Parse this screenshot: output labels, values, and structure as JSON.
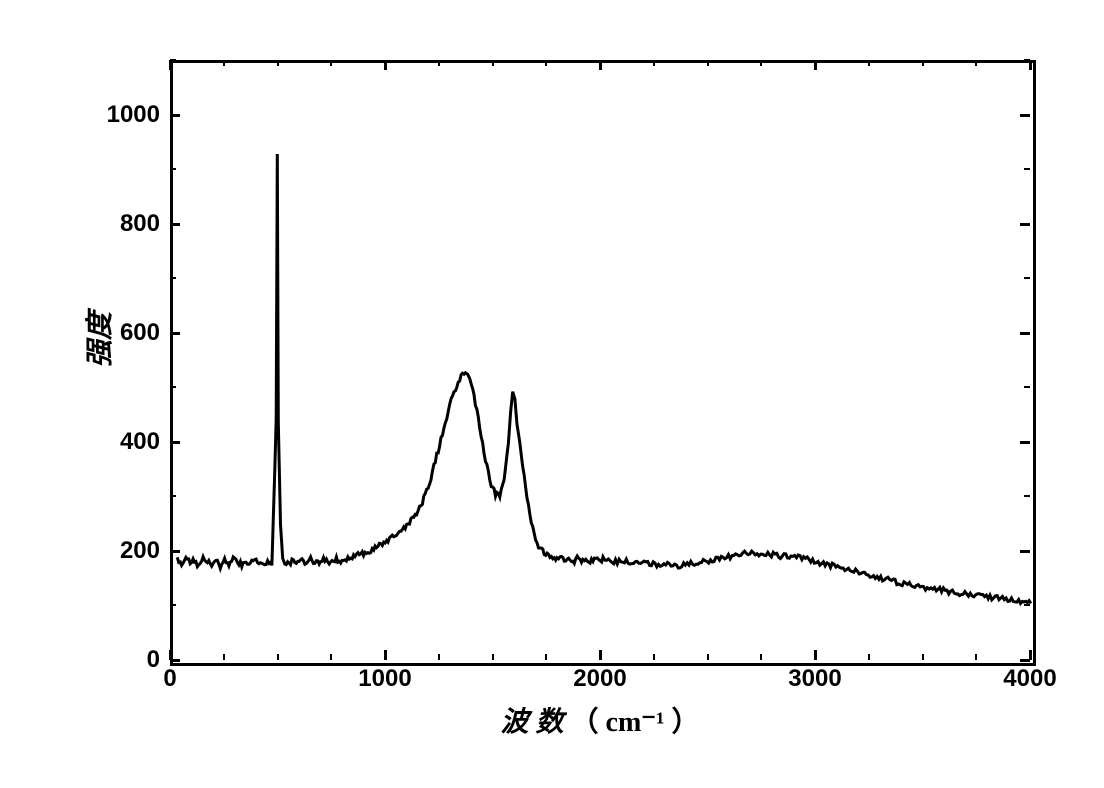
{
  "chart": {
    "type": "line",
    "title": "",
    "xlabel_prefix": "波 数",
    "xlabel_unit": "（ cm⁻¹ ）",
    "ylabel": "强度",
    "xlim": [
      0,
      4000
    ],
    "ylim": [
      0,
      1100
    ],
    "xtick_labels": [
      "0",
      "1000",
      "2000",
      "3000",
      "4000"
    ],
    "xtick_positions": [
      0,
      1000,
      2000,
      3000,
      4000
    ],
    "xtick_minor_step": 250,
    "ytick_labels": [
      "0",
      "200",
      "400",
      "600",
      "800",
      "1000"
    ],
    "ytick_positions": [
      0,
      200,
      400,
      600,
      800,
      1000
    ],
    "ytick_minor_step": 100,
    "major_tick_len": 10,
    "minor_tick_len": 6,
    "border_color": "#000000",
    "background_color": "#ffffff",
    "line_color": "#000000",
    "line_width": 3,
    "axis_width": 3,
    "label_fontsize": 28,
    "tick_fontsize": 24,
    "data": [
      [
        20,
        190
      ],
      [
        40,
        180
      ],
      [
        60,
        195
      ],
      [
        80,
        182
      ],
      [
        100,
        188
      ],
      [
        120,
        178
      ],
      [
        140,
        192
      ],
      [
        160,
        185
      ],
      [
        180,
        180
      ],
      [
        200,
        190
      ],
      [
        220,
        178
      ],
      [
        240,
        188
      ],
      [
        260,
        182
      ],
      [
        280,
        190
      ],
      [
        300,
        185
      ],
      [
        320,
        180
      ],
      [
        340,
        188
      ],
      [
        360,
        182
      ],
      [
        380,
        190
      ],
      [
        400,
        185
      ],
      [
        420,
        180
      ],
      [
        440,
        188
      ],
      [
        460,
        182
      ],
      [
        480,
        445
      ],
      [
        485,
        930
      ],
      [
        490,
        440
      ],
      [
        500,
        255
      ],
      [
        510,
        190
      ],
      [
        520,
        185
      ],
      [
        540,
        180
      ],
      [
        560,
        190
      ],
      [
        580,
        182
      ],
      [
        600,
        188
      ],
      [
        620,
        180
      ],
      [
        640,
        190
      ],
      [
        660,
        185
      ],
      [
        680,
        182
      ],
      [
        700,
        190
      ],
      [
        720,
        185
      ],
      [
        740,
        188
      ],
      [
        760,
        190
      ],
      [
        780,
        185
      ],
      [
        800,
        190
      ],
      [
        820,
        192
      ],
      [
        840,
        195
      ],
      [
        860,
        198
      ],
      [
        880,
        200
      ],
      [
        900,
        202
      ],
      [
        920,
        205
      ],
      [
        940,
        210
      ],
      [
        960,
        215
      ],
      [
        980,
        220
      ],
      [
        1000,
        225
      ],
      [
        1020,
        230
      ],
      [
        1040,
        235
      ],
      [
        1060,
        242
      ],
      [
        1080,
        250
      ],
      [
        1100,
        258
      ],
      [
        1120,
        268
      ],
      [
        1140,
        280
      ],
      [
        1160,
        295
      ],
      [
        1180,
        315
      ],
      [
        1200,
        340
      ],
      [
        1220,
        370
      ],
      [
        1240,
        400
      ],
      [
        1260,
        430
      ],
      [
        1280,
        460
      ],
      [
        1300,
        490
      ],
      [
        1320,
        510
      ],
      [
        1340,
        525
      ],
      [
        1360,
        535
      ],
      [
        1370,
        530
      ],
      [
        1380,
        520
      ],
      [
        1400,
        490
      ],
      [
        1420,
        450
      ],
      [
        1440,
        400
      ],
      [
        1460,
        360
      ],
      [
        1480,
        325
      ],
      [
        1500,
        310
      ],
      [
        1520,
        305
      ],
      [
        1540,
        340
      ],
      [
        1560,
        400
      ],
      [
        1570,
        460
      ],
      [
        1580,
        495
      ],
      [
        1590,
        480
      ],
      [
        1600,
        440
      ],
      [
        1620,
        380
      ],
      [
        1640,
        320
      ],
      [
        1660,
        270
      ],
      [
        1680,
        235
      ],
      [
        1700,
        215
      ],
      [
        1720,
        205
      ],
      [
        1740,
        200
      ],
      [
        1760,
        195
      ],
      [
        1780,
        190
      ],
      [
        1800,
        192
      ],
      [
        1820,
        188
      ],
      [
        1840,
        195
      ],
      [
        1860,
        185
      ],
      [
        1880,
        192
      ],
      [
        1900,
        188
      ],
      [
        1920,
        190
      ],
      [
        1940,
        185
      ],
      [
        1960,
        192
      ],
      [
        1980,
        188
      ],
      [
        2000,
        190
      ],
      [
        2050,
        185
      ],
      [
        2100,
        188
      ],
      [
        2150,
        182
      ],
      [
        2200,
        185
      ],
      [
        2250,
        180
      ],
      [
        2300,
        182
      ],
      [
        2350,
        178
      ],
      [
        2400,
        182
      ],
      [
        2450,
        185
      ],
      [
        2500,
        188
      ],
      [
        2550,
        192
      ],
      [
        2600,
        195
      ],
      [
        2650,
        200
      ],
      [
        2700,
        202
      ],
      [
        2750,
        200
      ],
      [
        2800,
        198
      ],
      [
        2850,
        195
      ],
      [
        2900,
        195
      ],
      [
        2950,
        190
      ],
      [
        3000,
        185
      ],
      [
        3050,
        180
      ],
      [
        3100,
        175
      ],
      [
        3150,
        170
      ],
      [
        3200,
        165
      ],
      [
        3250,
        160
      ],
      [
        3300,
        155
      ],
      [
        3350,
        150
      ],
      [
        3400,
        145
      ],
      [
        3450,
        142
      ],
      [
        3500,
        138
      ],
      [
        3550,
        135
      ],
      [
        3600,
        132
      ],
      [
        3650,
        128
      ],
      [
        3700,
        125
      ],
      [
        3750,
        122
      ],
      [
        3800,
        120
      ],
      [
        3850,
        118
      ],
      [
        3900,
        115
      ],
      [
        3950,
        112
      ],
      [
        3990,
        113
      ]
    ]
  }
}
